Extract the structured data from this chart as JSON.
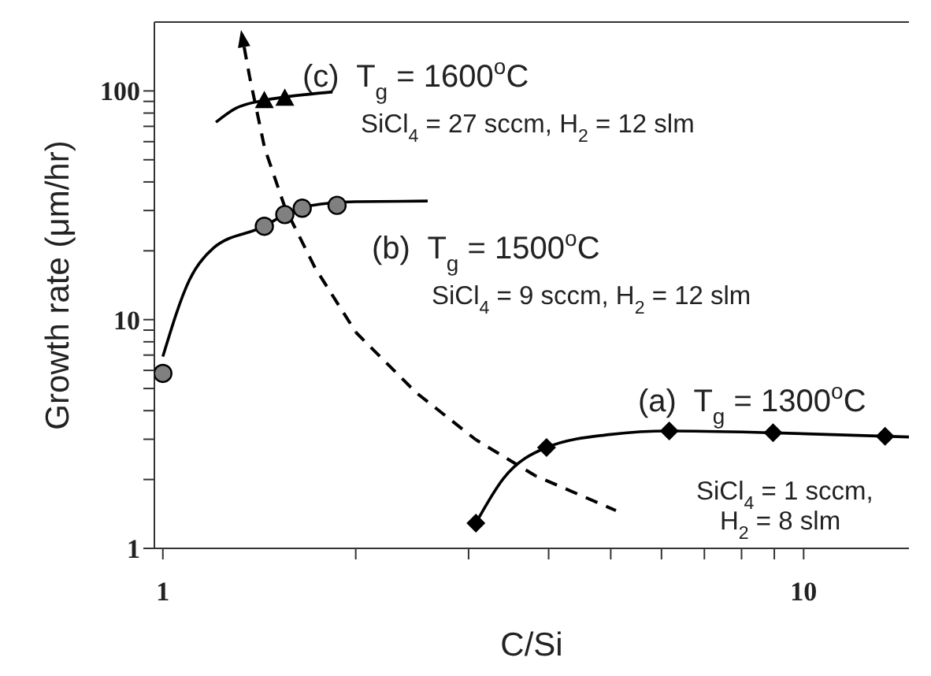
{
  "chart_data": {
    "type": "scatter",
    "xlabel": "C/Si",
    "ylabel": "Growth rate (μm/hr)",
    "log": "xy",
    "xlim": [
      0.97,
      14.6
    ],
    "ylim": [
      1,
      200
    ],
    "xticks": [
      1,
      {
        "value": 2,
        "label": null
      },
      {
        "value": 3,
        "label": null
      },
      {
        "value": 4,
        "label": null
      },
      {
        "value": 5,
        "label": null
      },
      {
        "value": 6,
        "label": null
      },
      {
        "value": 7,
        "label": null
      },
      {
        "value": 8,
        "label": null
      },
      {
        "value": 9,
        "label": null
      },
      10
    ],
    "yticks": [
      1,
      {
        "value": 2,
        "label": null
      },
      {
        "value": 3,
        "label": null
      },
      {
        "value": 4,
        "label": null
      },
      {
        "value": 5,
        "label": null
      },
      {
        "value": 6,
        "label": null
      },
      {
        "value": 7,
        "label": null
      },
      {
        "value": 8,
        "label": null
      },
      {
        "value": 9,
        "label": null
      },
      10,
      {
        "value": 20,
        "label": null
      },
      {
        "value": 30,
        "label": null
      },
      {
        "value": 40,
        "label": null
      },
      {
        "value": 50,
        "label": null
      },
      {
        "value": 60,
        "label": null
      },
      {
        "value": 70,
        "label": null
      },
      {
        "value": 80,
        "label": null
      },
      {
        "value": 90,
        "label": null
      },
      100
    ],
    "series": [
      {
        "marker": "diamond",
        "color": "#000000",
        "x": [
          3.08,
          3.97,
          6.17,
          8.96,
          13.4
        ],
        "values": [
          1.29,
          2.76,
          3.26,
          3.2,
          3.09
        ]
      },
      {
        "marker": "circle",
        "color": "#808080",
        "x": [
          1,
          1.44,
          1.55,
          1.65,
          1.87
        ],
        "values": [
          5.82,
          25.6,
          28.8,
          30.7,
          31.6
        ]
      },
      {
        "marker": "triangle",
        "color": "#000000",
        "x": [
          1.44,
          1.55
        ],
        "values": [
          91,
          93.2
        ]
      },
      {
        "type": "line",
        "marker": "none",
        "line_style": "solid",
        "color": "#000000",
        "x": [
          3.08,
          3.4,
          3.97,
          5,
          6.17,
          9,
          14.6
        ],
        "values": [
          1.29,
          2.02,
          2.76,
          3.15,
          3.26,
          3.2,
          3.07
        ]
      },
      {
        "type": "line",
        "marker": "none",
        "line_style": "solid",
        "color": "#000000",
        "x": [
          1,
          1.1,
          1.2,
          1.44,
          1.55,
          1.7,
          2,
          2.59
        ],
        "values": [
          6.9,
          14.9,
          20.6,
          25.6,
          28.8,
          31.5,
          32.8,
          33
        ]
      },
      {
        "type": "line",
        "marker": "none",
        "line_style": "solid",
        "color": "#000000",
        "x": [
          1.21,
          1.3,
          1.44,
          1.55,
          1.84
        ],
        "values": [
          73,
          84,
          91,
          94,
          99
        ]
      }
    ],
    "annotations": [
      "(c)  T$_{g}$ = 1600$^{o}$C",
      "SiCl$_{4}$ = 27 sccm, H$_{2}$ = 12 slm",
      "(b)  T$_{g}$ = 1500$^{o}$C",
      "SiCl$_{4}$ = 9 sccm, H$_{2}$ = 12 slm",
      "(a)  T$_{g}$ = 1300$^{o}$C",
      "SiCl$_{4}$ = 1 sccm,",
      "H$_{2}$ = 8 slm"
    ]
  }
}
